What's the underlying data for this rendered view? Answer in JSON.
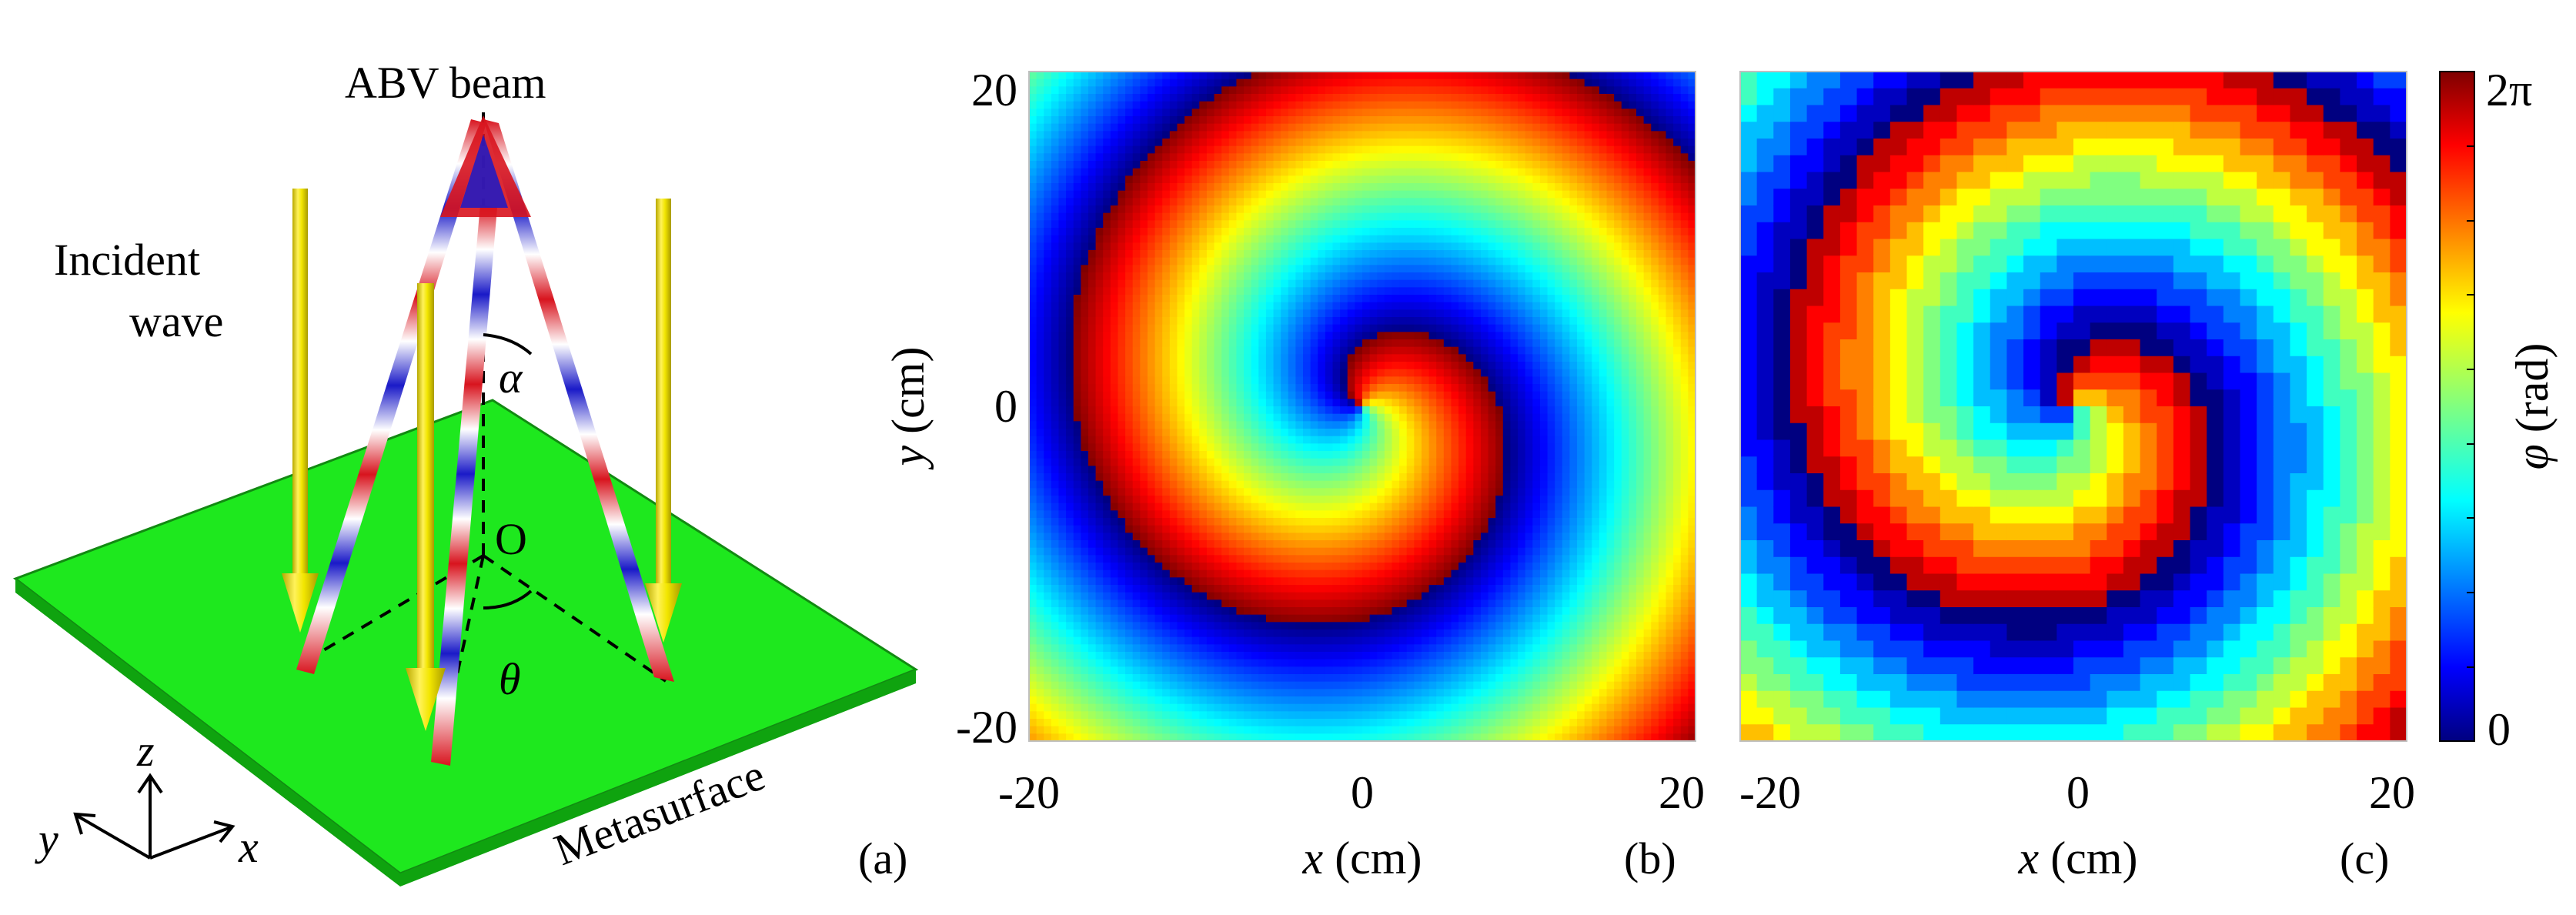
{
  "figure": {
    "panel_a": {
      "beam_label": "ABV beam",
      "incident_label_line1": "Incident",
      "incident_label_line2": "wave",
      "alpha_label": "α",
      "origin_label": "O",
      "theta_label": "θ",
      "surface_label": "Metasurface",
      "axis_x": "x",
      "axis_y": "y",
      "axis_z": "z",
      "tag": "(a)"
    },
    "panel_b": {
      "x_ticks": [
        "-20",
        "0",
        "20"
      ],
      "y_ticks": [
        "20",
        "0",
        "-20"
      ],
      "xlabel_var": "x",
      "xlabel_unit": " (cm)",
      "ylabel_var": "y",
      "ylabel_unit": " (cm)",
      "tag": "(b)"
    },
    "panel_c": {
      "x_ticks": [
        "-20",
        "0",
        "20"
      ],
      "xlabel_var": "x",
      "xlabel_unit": " (cm)",
      "tag": "(c)"
    },
    "colorbar": {
      "max_label": "2π",
      "min_label": "0",
      "label_var": "φ",
      "label_unit": " (rad)"
    }
  },
  "colors": {
    "surface_green": "#1ee81e",
    "arrow_yellow": "#f2e600",
    "beam_red": "#d8141e",
    "beam_blue": "#1a1ac8"
  }
}
